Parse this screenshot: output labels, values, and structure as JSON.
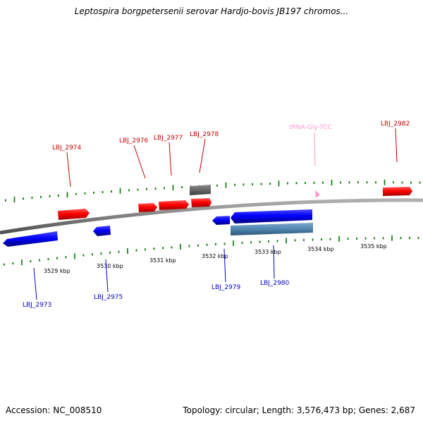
{
  "title": "Leptospira borgpetersenii serovar Hardjo-bovis JB197 chromos...",
  "footer": {
    "accession": "Accession: NC_008510",
    "summary": "Topology: circular; Length: 3,576,473 bp; Genes: 2,687"
  },
  "colors": {
    "forward_gene": "#ff0000",
    "reverse_gene": "#0000ff",
    "forward_label": "#cc0000",
    "reverse_label": "#0000cc",
    "trna": "#ff99cc",
    "tick": "#007700",
    "backbone": "#808080",
    "other_feature": "#666666",
    "reverse_other": "#4f86b0"
  },
  "scale_labels": [
    "3529 kbp",
    "3530 kbp",
    "3531 kbp",
    "3532 kbp",
    "3533 kbp",
    "3534 kbp",
    "3535 kbp"
  ],
  "forward_labels": [
    "LBJ_2974",
    "LBJ_2976",
    "LBJ_2977",
    "LBJ_2978",
    "tRNA-Gly-TCC",
    "LBJ_2982"
  ],
  "reverse_labels": [
    "LBJ_2973",
    "LBJ_2975",
    "LBJ_2979",
    "LBJ_2980"
  ]
}
